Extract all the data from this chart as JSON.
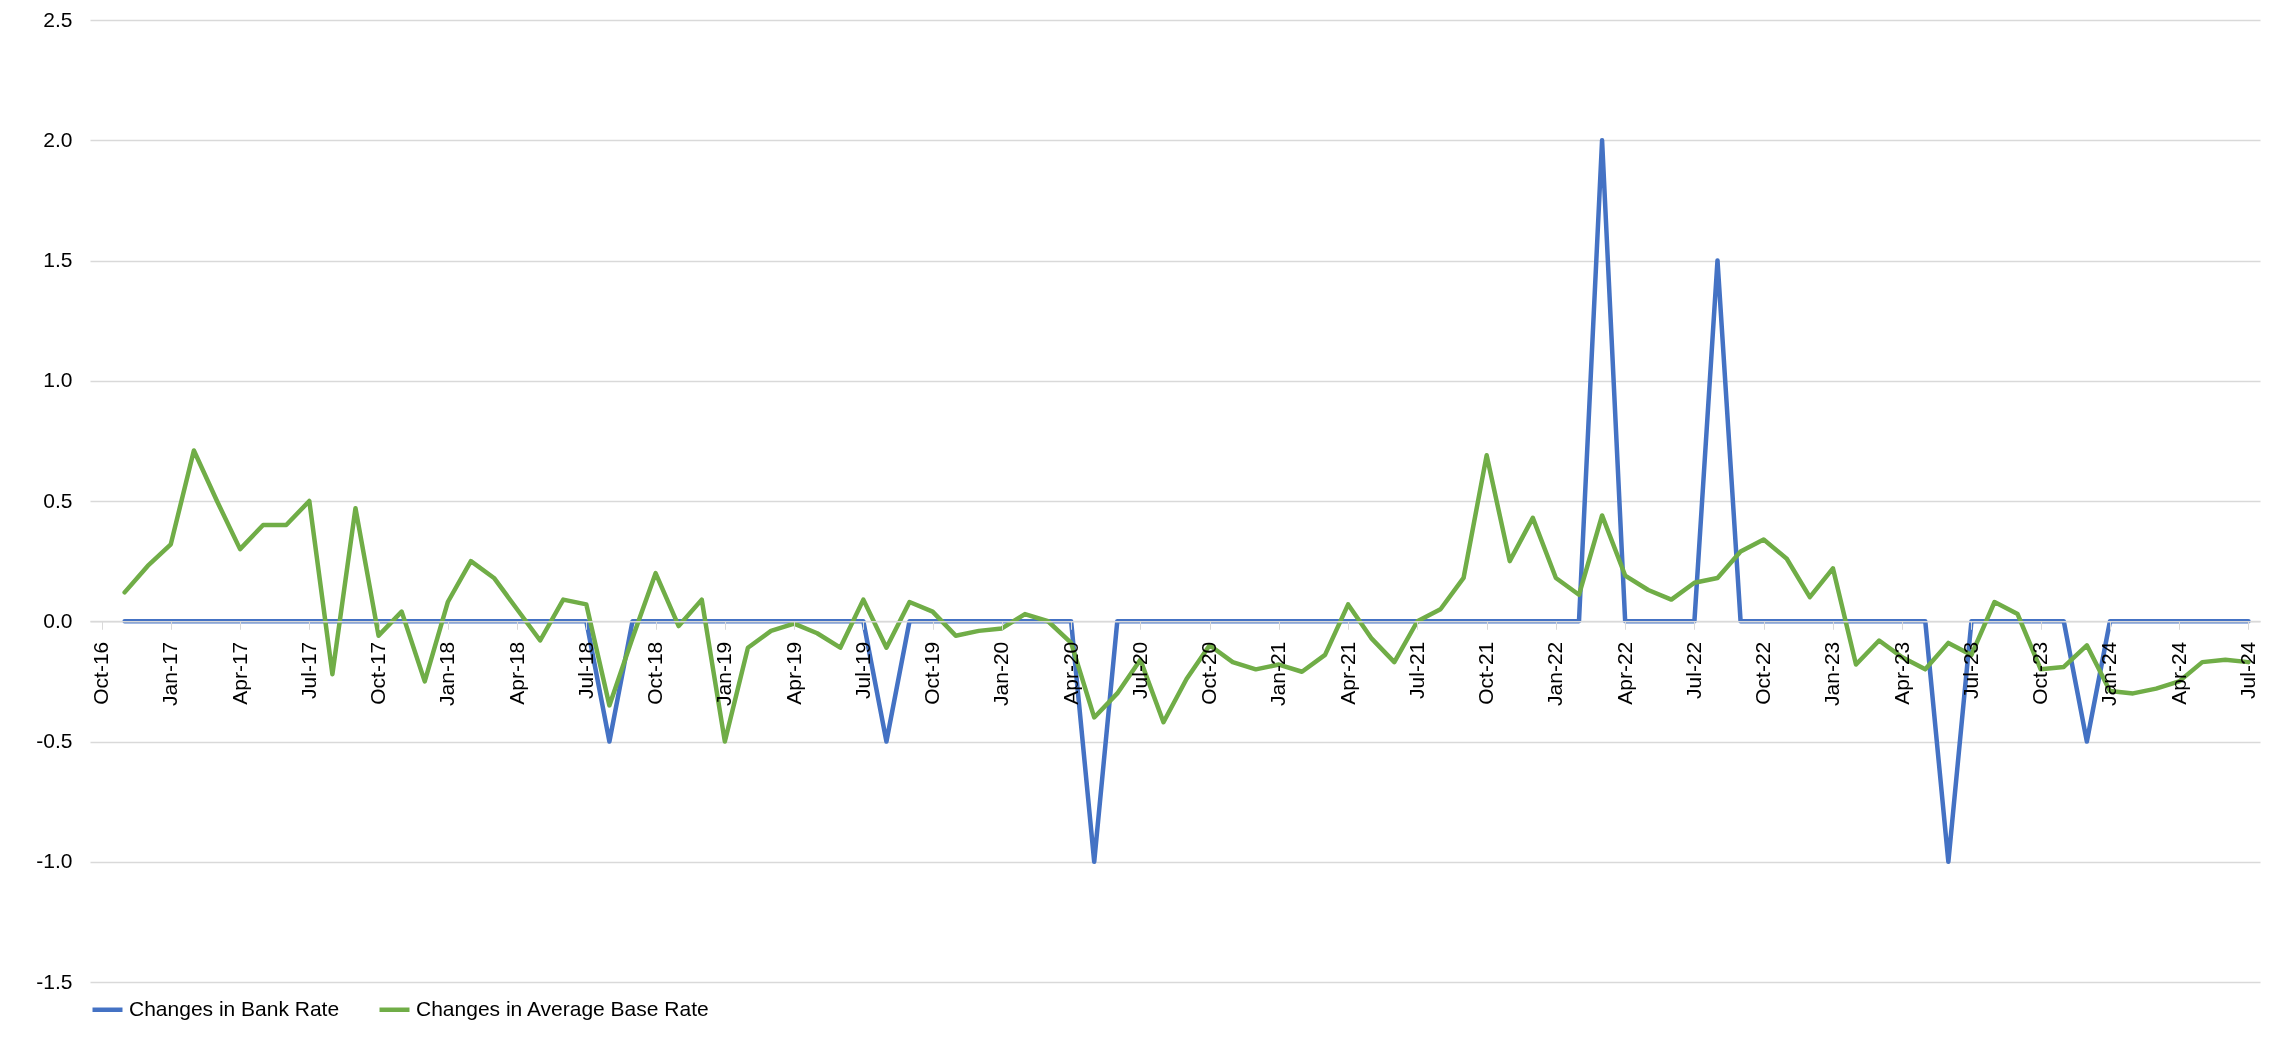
{
  "chart_data": {
    "type": "line",
    "categories": [
      "Oct-16",
      null,
      null,
      "Jan-17",
      null,
      null,
      "Apr-17",
      null,
      null,
      "Jul-17",
      null,
      null,
      "Oct-17",
      null,
      null,
      "Jan-18",
      null,
      null,
      "Apr-18",
      null,
      null,
      "Jul-18",
      null,
      null,
      "Oct-18",
      null,
      null,
      "Jan-19",
      null,
      null,
      "Apr-19",
      null,
      null,
      "Jul-19",
      null,
      null,
      "Oct-19",
      null,
      null,
      "Jan-20",
      null,
      null,
      "Apr-20",
      null,
      null,
      "Jul-20",
      null,
      null,
      "Oct-20",
      null,
      null,
      "Jan-21",
      null,
      null,
      "Apr-21",
      null,
      null,
      "Jul-21",
      null,
      null,
      "Oct-21",
      null,
      null,
      "Jan-22",
      null,
      null,
      "Apr-22",
      null,
      null,
      "Jul-22",
      null,
      null,
      "Oct-22",
      null,
      null,
      "Jan-23",
      null,
      null,
      "Apr-23",
      null,
      null,
      "Jul-23",
      null,
      null,
      "Oct-23",
      null,
      null,
      "Jan-24",
      null,
      null,
      "Apr-24",
      null,
      null,
      "Jul-24"
    ],
    "series": [
      {
        "name": "Changes in Bank Rate",
        "color": "#4472c4",
        "values": [
          null,
          0,
          0,
          0,
          0,
          0,
          0,
          0,
          0,
          0,
          0,
          0,
          0,
          0,
          0,
          0,
          0,
          0,
          0,
          0,
          0,
          0,
          -0.5,
          0,
          0,
          0,
          0,
          0,
          0,
          0,
          0,
          0,
          0,
          0,
          -0.5,
          0,
          0,
          0,
          0,
          0,
          0,
          0,
          0,
          -1.0,
          0,
          0,
          0,
          0,
          0,
          0,
          0,
          0,
          0,
          0,
          0,
          0,
          0,
          0,
          0,
          0,
          0,
          0,
          0,
          0,
          0,
          2.0,
          0,
          0,
          0,
          0,
          1.5,
          0,
          0,
          0,
          0,
          0,
          0,
          0,
          0,
          0,
          -1.0,
          0,
          0,
          0,
          0,
          0,
          -0.5,
          0,
          0,
          0,
          0,
          0,
          0,
          0
        ]
      },
      {
        "name": "Changes in Average Base Rate",
        "color": "#70ad47",
        "values": [
          null,
          0.12,
          0.23,
          0.32,
          0.71,
          0.5,
          0.3,
          0.4,
          0.4,
          0.5,
          -0.22,
          0.47,
          -0.06,
          0.04,
          -0.25,
          0.08,
          0.25,
          0.18,
          0.05,
          -0.08,
          0.09,
          0.07,
          -0.35,
          -0.07,
          0.2,
          -0.02,
          0.09,
          -0.5,
          -0.11,
          -0.04,
          -0.01,
          -0.05,
          -0.11,
          0.09,
          -0.11,
          0.08,
          0.04,
          -0.06,
          -0.04,
          -0.03,
          0.03,
          0.0,
          -0.09,
          -0.4,
          -0.3,
          -0.16,
          -0.42,
          -0.24,
          -0.1,
          -0.17,
          -0.2,
          -0.18,
          -0.21,
          -0.14,
          0.07,
          -0.07,
          -0.17,
          0.0,
          0.05,
          0.18,
          0.69,
          0.25,
          0.43,
          0.18,
          0.11,
          0.44,
          0.19,
          0.13,
          0.09,
          0.16,
          0.18,
          0.29,
          0.34,
          0.26,
          0.1,
          0.22,
          -0.18,
          -0.08,
          -0.15,
          -0.2,
          -0.09,
          -0.14,
          0.08,
          0.03,
          -0.2,
          -0.19,
          -0.1,
          -0.29,
          -0.3,
          -0.28,
          -0.25,
          -0.17,
          -0.16,
          -0.17
        ]
      }
    ],
    "ylim": [
      -1.5,
      2.5
    ],
    "yticks": [
      -1.5,
      {
        "value": -1.0,
        "label": "-1.0"
      },
      -0.5,
      {
        "value": 0,
        "label": "0.0"
      },
      0.5,
      {
        "value": 1.0,
        "label": "1.0"
      },
      1.5,
      {
        "value": 2.0,
        "label": "2.0"
      },
      2.5
    ],
    "grid": "y",
    "legend": "bottom"
  }
}
